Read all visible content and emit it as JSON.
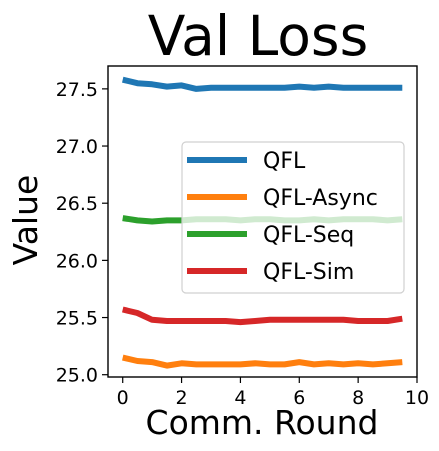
{
  "chart_data": {
    "type": "line",
    "title": "Val Loss",
    "xlabel": "Comm. Round",
    "ylabel": "Value",
    "xlim": [
      -0.5,
      10
    ],
    "ylim": [
      24.98,
      27.7
    ],
    "xticks": [
      0,
      2,
      4,
      6,
      8,
      10
    ],
    "xtick_labels": [
      "0",
      "2",
      "4",
      "6",
      "8",
      "10"
    ],
    "yticks": [
      25.0,
      25.5,
      26.0,
      26.5,
      27.0,
      27.5
    ],
    "ytick_labels": [
      "25.0",
      "25.5",
      "26.0",
      "26.5",
      "27.0",
      "27.5"
    ],
    "grid": false,
    "legend_position": "center-right",
    "x": [
      0,
      0.5,
      1,
      1.5,
      2,
      2.5,
      3,
      3.5,
      4,
      4.5,
      5,
      5.5,
      6,
      6.5,
      7,
      7.5,
      8,
      8.5,
      9,
      9.5
    ],
    "series": [
      {
        "name": "QFL",
        "color": "#1f77b4",
        "values": [
          27.58,
          27.55,
          27.54,
          27.52,
          27.53,
          27.5,
          27.51,
          27.51,
          27.51,
          27.51,
          27.51,
          27.51,
          27.52,
          27.51,
          27.52,
          27.51,
          27.51,
          27.51,
          27.51,
          27.51
        ]
      },
      {
        "name": "QFL-Async",
        "color": "#ff7f0e",
        "values": [
          25.15,
          25.12,
          25.11,
          25.08,
          25.1,
          25.09,
          25.09,
          25.09,
          25.09,
          25.1,
          25.09,
          25.09,
          25.11,
          25.09,
          25.1,
          25.09,
          25.1,
          25.09,
          25.1,
          25.11
        ]
      },
      {
        "name": "QFL-Seq",
        "color": "#2ca02c",
        "values": [
          26.37,
          26.35,
          26.34,
          26.35,
          26.35,
          26.36,
          26.36,
          26.36,
          26.35,
          26.36,
          26.36,
          26.35,
          26.35,
          26.36,
          26.35,
          26.36,
          26.36,
          26.36,
          26.35,
          26.36
        ]
      },
      {
        "name": "QFL-Sim",
        "color": "#d62728",
        "values": [
          25.57,
          25.54,
          25.48,
          25.47,
          25.47,
          25.47,
          25.47,
          25.47,
          25.46,
          25.47,
          25.48,
          25.48,
          25.48,
          25.48,
          25.48,
          25.48,
          25.47,
          25.47,
          25.47,
          25.49
        ]
      }
    ]
  }
}
